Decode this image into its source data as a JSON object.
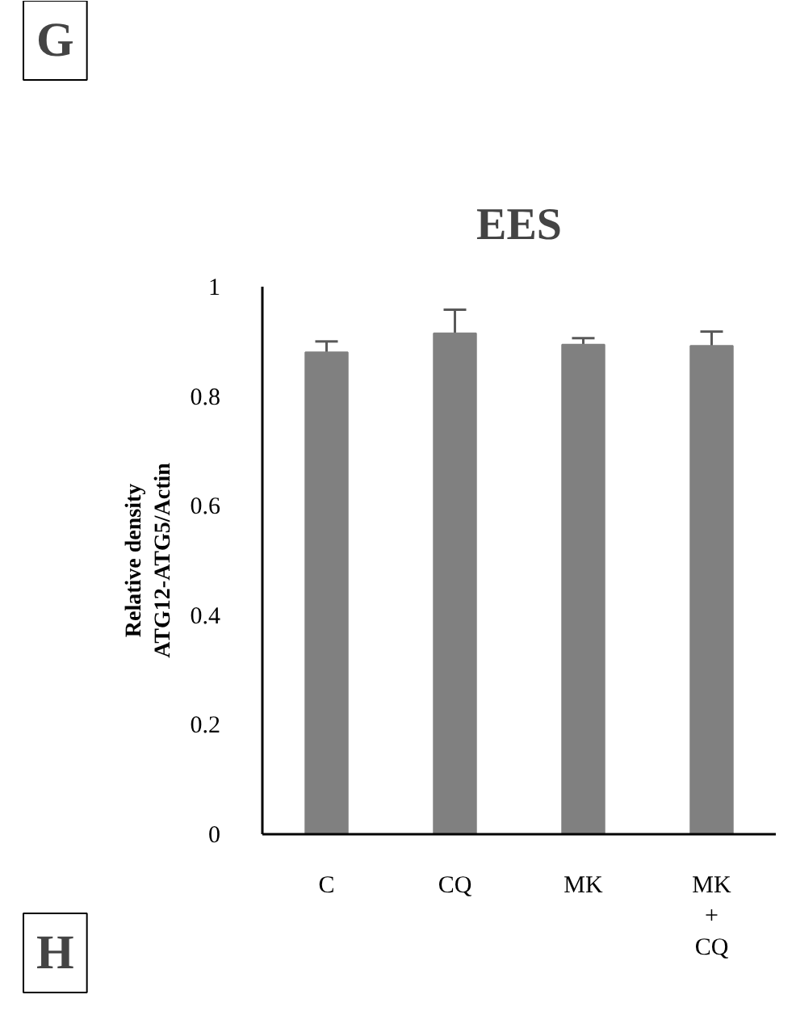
{
  "chart_data": {
    "type": "bar",
    "title": "EES",
    "ylabel": "Relative density\nATG12-ATG5/Actin",
    "categories": [
      "C",
      "CQ",
      "MK",
      "MK\n+\nCQ"
    ],
    "series": [
      {
        "color": "#808080",
        "values": [
          0.88,
          0.915,
          0.894,
          0.892
        ],
        "errors": [
          [
            0.88,
            0.9
          ],
          [
            0.915,
            0.958
          ],
          [
            0.894,
            0.906
          ],
          [
            0.892,
            0.918
          ]
        ]
      }
    ],
    "ylim": [
      0,
      1
    ],
    "yticks": [
      0,
      0.2,
      0.4,
      0.6,
      0.8,
      1
    ],
    "grid": false,
    "annotations": [
      "G",
      "H"
    ]
  }
}
